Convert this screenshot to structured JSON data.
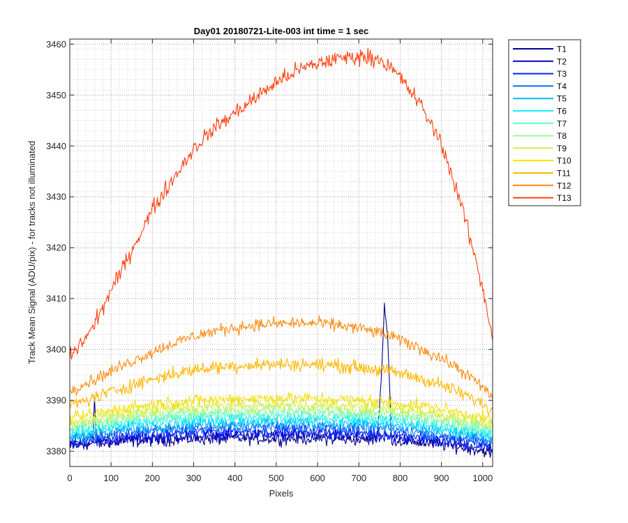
{
  "chart_data": {
    "type": "line",
    "title": "Day01 20180721-Lite-003 int time = 1 sec",
    "xlabel": "Pixels",
    "ylabel": "Track Mean Signal (ADU/pix) - for tracks not illuminated",
    "xlim": [
      0,
      1024
    ],
    "ylim": [
      3377,
      3461
    ],
    "xticks": [
      0,
      100,
      200,
      300,
      400,
      500,
      600,
      700,
      800,
      900,
      1000
    ],
    "yticks": [
      3380,
      3390,
      3400,
      3410,
      3420,
      3430,
      3440,
      3450,
      3460
    ],
    "xtick_labels": [
      "0",
      "100",
      "200",
      "300",
      "400",
      "500",
      "600",
      "700",
      "800",
      "900",
      "1000"
    ],
    "ytick_labels": [
      "3380",
      "3390",
      "3400",
      "3410",
      "3420",
      "3430",
      "3440",
      "3450",
      "3460"
    ],
    "grid": "major and minor, dotted",
    "legend_position": "outside right-top",
    "x_profile": [
      0,
      50,
      100,
      150,
      200,
      250,
      300,
      350,
      400,
      450,
      500,
      550,
      600,
      650,
      700,
      750,
      800,
      850,
      900,
      950,
      1000,
      1024
    ],
    "series": [
      {
        "name": "T1",
        "color": "#00008f",
        "noise": 1.0,
        "values": [
          3381,
          3381.5,
          3381.8,
          3382,
          3382.2,
          3382.3,
          3382.4,
          3382.5,
          3382.5,
          3382.5,
          3382.5,
          3382.5,
          3382.5,
          3382.4,
          3382.3,
          3382.2,
          3382,
          3381.7,
          3381.3,
          3380.8,
          3380.2,
          3379.6
        ]
      },
      {
        "name": "T2",
        "color": "#0000c8",
        "noise": 1.0,
        "values": [
          3381.3,
          3381.8,
          3382.2,
          3382.5,
          3382.7,
          3382.9,
          3383,
          3383.1,
          3383.1,
          3383.2,
          3383.2,
          3383.2,
          3383.1,
          3383,
          3382.9,
          3382.7,
          3382.5,
          3382.2,
          3381.8,
          3381.3,
          3380.7,
          3380.2
        ]
      },
      {
        "name": "T3",
        "color": "#0022ff",
        "noise": 1.0,
        "values": [
          3381.8,
          3382.3,
          3382.8,
          3383.2,
          3383.4,
          3383.6,
          3383.8,
          3383.9,
          3384,
          3384,
          3384,
          3384,
          3384,
          3383.9,
          3383.7,
          3383.5,
          3383.3,
          3382.9,
          3382.5,
          3382,
          3381.4,
          3380.9
        ]
      },
      {
        "name": "T4",
        "color": "#0070ff",
        "noise": 1.0,
        "values": [
          3382.4,
          3383,
          3383.5,
          3383.9,
          3384.2,
          3384.4,
          3384.6,
          3384.7,
          3384.8,
          3384.8,
          3384.9,
          3384.9,
          3384.8,
          3384.7,
          3384.6,
          3384.4,
          3384.1,
          3383.7,
          3383.2,
          3382.7,
          3382.1,
          3381.6
        ]
      },
      {
        "name": "T5",
        "color": "#00b8ff",
        "noise": 1.0,
        "values": [
          3383,
          3383.6,
          3384.2,
          3384.6,
          3384.9,
          3385.2,
          3385.4,
          3385.5,
          3385.6,
          3385.7,
          3385.7,
          3385.7,
          3385.6,
          3385.5,
          3385.4,
          3385.2,
          3384.9,
          3384.5,
          3384,
          3383.4,
          3382.8,
          3382.3
        ]
      },
      {
        "name": "T6",
        "color": "#10f0ff",
        "noise": 1.0,
        "values": [
          3383.6,
          3384.3,
          3384.9,
          3385.3,
          3385.7,
          3386,
          3386.2,
          3386.3,
          3386.4,
          3386.5,
          3386.5,
          3386.5,
          3386.4,
          3386.3,
          3386.2,
          3386,
          3385.7,
          3385.3,
          3384.8,
          3384.2,
          3383.6,
          3383
        ]
      },
      {
        "name": "T7",
        "color": "#60f8d0",
        "noise": 1.0,
        "values": [
          3384.2,
          3384.9,
          3385.5,
          3386,
          3386.4,
          3386.7,
          3386.9,
          3387.1,
          3387.2,
          3387.3,
          3387.3,
          3387.3,
          3387.2,
          3387.1,
          3387,
          3386.8,
          3386.5,
          3386.1,
          3385.6,
          3385,
          3384.3,
          3383.7
        ]
      },
      {
        "name": "T8",
        "color": "#9ff896",
        "noise": 1.0,
        "values": [
          3384.8,
          3385.6,
          3386.2,
          3386.8,
          3387.2,
          3387.5,
          3387.7,
          3387.9,
          3388,
          3388.1,
          3388.1,
          3388.1,
          3388,
          3387.9,
          3387.8,
          3387.6,
          3387.3,
          3386.9,
          3386.4,
          3385.7,
          3385,
          3384.4
        ]
      },
      {
        "name": "T9",
        "color": "#d4f040",
        "noise": 1.0,
        "values": [
          3385.5,
          3386.3,
          3387,
          3387.6,
          3388,
          3388.4,
          3388.6,
          3388.8,
          3389,
          3389,
          3389.1,
          3389.1,
          3389,
          3388.9,
          3388.7,
          3388.5,
          3388.2,
          3387.8,
          3387.2,
          3386.5,
          3385.7,
          3385
        ]
      },
      {
        "name": "T10",
        "color": "#f6e000",
        "noise": 1.0,
        "values": [
          3386.3,
          3387.2,
          3388,
          3388.7,
          3389.2,
          3389.6,
          3389.9,
          3390.1,
          3390.3,
          3390.4,
          3390.4,
          3390.4,
          3390.3,
          3390.2,
          3390,
          3389.8,
          3389.4,
          3388.9,
          3388.3,
          3387.5,
          3386.6,
          3385.8
        ]
      },
      {
        "name": "T11",
        "color": "#ffb800",
        "noise": 1.1,
        "values": [
          3389,
          3390.3,
          3391.7,
          3393,
          3394.2,
          3395.2,
          3396,
          3396.5,
          3396.8,
          3397,
          3397.1,
          3397.1,
          3397,
          3396.8,
          3396.5,
          3396,
          3395.3,
          3394.3,
          3393,
          3391.3,
          3389.3,
          3387.8
        ]
      },
      {
        "name": "T12",
        "color": "#ff8a10",
        "noise": 1.0,
        "values": [
          3392,
          3393.8,
          3395.7,
          3397.7,
          3399.5,
          3401.2,
          3402.6,
          3403.6,
          3404.3,
          3404.8,
          3405.1,
          3405.2,
          3405.1,
          3404.8,
          3404.2,
          3403.3,
          3401.9,
          3400.2,
          3398.2,
          3395.8,
          3392.6,
          3390.5
        ]
      },
      {
        "name": "T13",
        "color": "#ff4010",
        "noise": 1.3,
        "values": [
          3398.5,
          3403.5,
          3411.5,
          3419.5,
          3427.5,
          3433.5,
          3439.5,
          3443.5,
          3446.5,
          3449.5,
          3452.5,
          3454.8,
          3456.2,
          3457.2,
          3457.6,
          3457.2,
          3453.5,
          3448,
          3440.5,
          3428,
          3412,
          3402.5
        ]
      }
    ],
    "annotations": [
      {
        "series": "T1",
        "description": "spike near x=765 rising to about 3409",
        "x": [
          745,
          755,
          762,
          770,
          778
        ],
        "y": [
          3383,
          3395,
          3409,
          3402,
          3385
        ]
      },
      {
        "series": "T1",
        "description": "small spike near x=60",
        "x": [
          56,
          60,
          64
        ],
        "y": [
          3382,
          3390,
          3383
        ]
      }
    ]
  }
}
